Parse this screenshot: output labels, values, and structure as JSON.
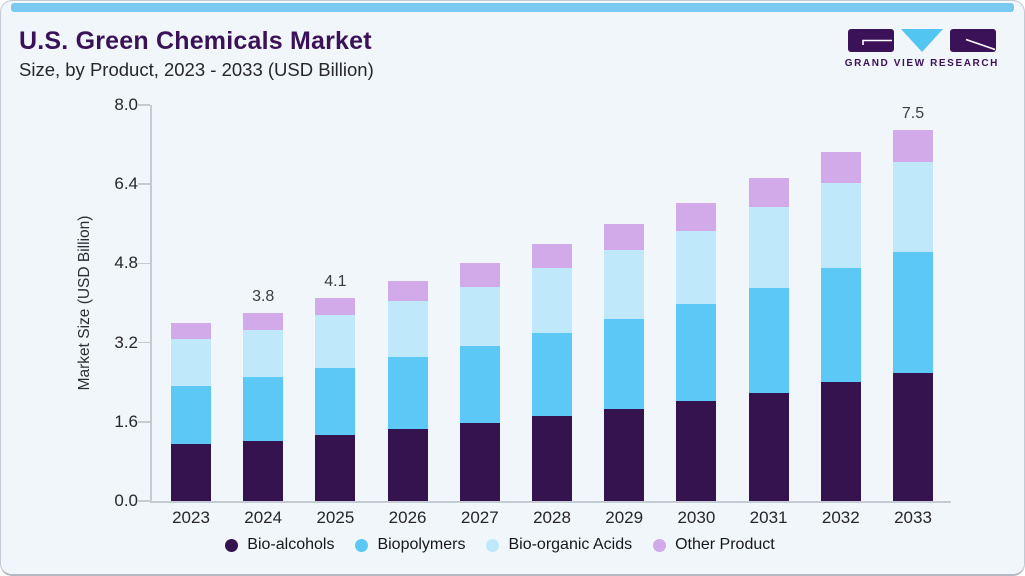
{
  "header": {
    "title": "U.S. Green Chemicals Market",
    "subtitle": "Size, by Product, 2023 - 2033 (USD Billion)",
    "logo_text": "GRAND VIEW RESEARCH"
  },
  "colors": {
    "top_stripe": "#79c9f0",
    "card_background": "#f0f6fa",
    "title_purple": "#3b1257",
    "logo_purple": "#3b1257",
    "logo_cyan": "#52c5f0",
    "axis_gray": "#c5cbd3"
  },
  "chart_data": {
    "type": "bar",
    "stacked": true,
    "title": "U.S. Green Chemicals Market Size, by Product, 2023 - 2033 (USD Billion)",
    "xlabel": "",
    "ylabel": "Market Size (USD Billion)",
    "ylim": [
      0,
      8.0
    ],
    "yticks": [
      0.0,
      1.6,
      3.2,
      4.8,
      6.4,
      8.0
    ],
    "grid": false,
    "legend_position": "bottom",
    "categories": [
      "2023",
      "2024",
      "2025",
      "2026",
      "2027",
      "2028",
      "2029",
      "2030",
      "2031",
      "2032",
      "2033"
    ],
    "series": [
      {
        "name": "Bio-alcohols",
        "color": "#34134e",
        "values": [
          1.15,
          1.22,
          1.33,
          1.45,
          1.58,
          1.71,
          1.85,
          2.02,
          2.19,
          2.4,
          2.58
        ]
      },
      {
        "name": "Biopolymers",
        "color": "#5cc8f5",
        "values": [
          1.18,
          1.28,
          1.36,
          1.46,
          1.56,
          1.69,
          1.82,
          1.95,
          2.12,
          2.3,
          2.45
        ]
      },
      {
        "name": "Bio-organic Acids",
        "color": "#bfe8fa",
        "values": [
          0.95,
          0.96,
          1.06,
          1.13,
          1.19,
          1.3,
          1.41,
          1.49,
          1.62,
          1.72,
          1.82
        ]
      },
      {
        "name": "Other Product",
        "color": "#d2a9e9",
        "values": [
          0.32,
          0.34,
          0.35,
          0.41,
          0.47,
          0.49,
          0.51,
          0.56,
          0.59,
          0.64,
          0.65
        ]
      }
    ],
    "total_labels": {
      "2024": "3.8",
      "2025": "4.1",
      "2033": "7.5"
    }
  }
}
